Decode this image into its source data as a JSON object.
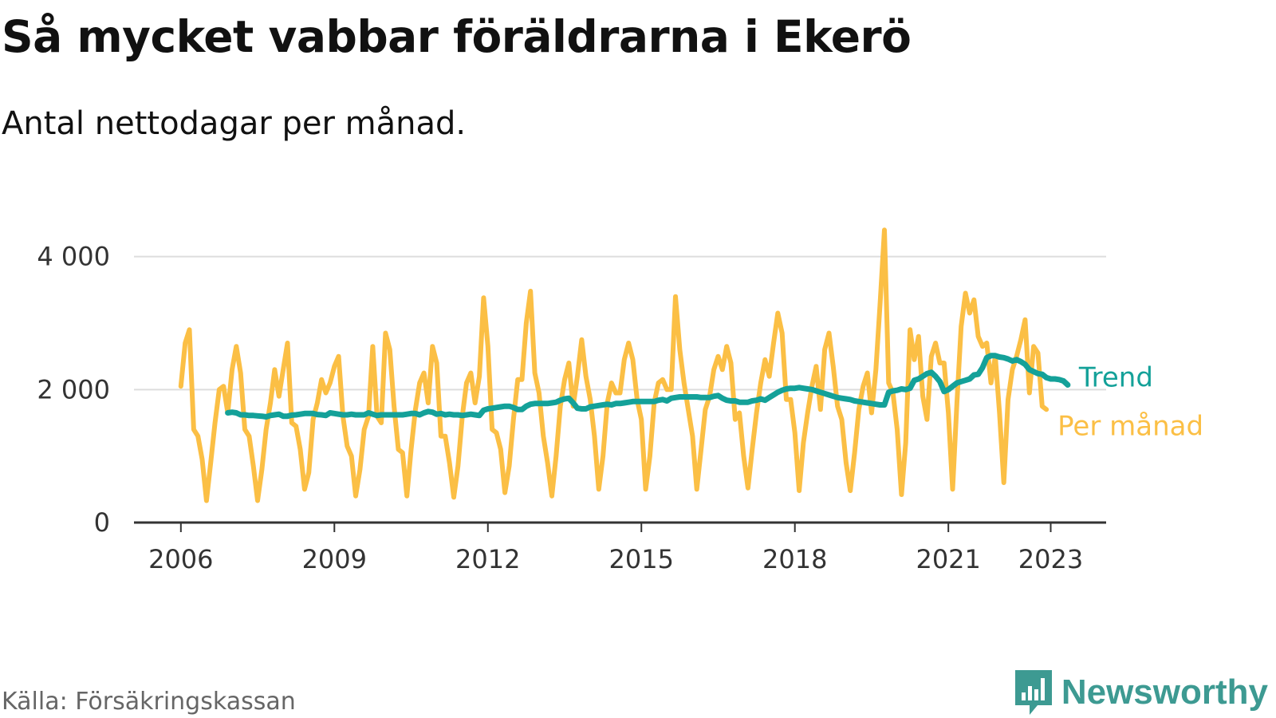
{
  "title": "Så mycket vabbar föräldrarna i Ekerö",
  "subtitle": "Antal nettodagar per månad.",
  "source": "Källa: Försäkringskassan",
  "brand": {
    "name": "Newsworthy",
    "icon": "newsworthy-logo-icon",
    "color": "#3d9a92"
  },
  "chart_data": {
    "type": "line",
    "title": "Så mycket vabbar föräldrarna i Ekerö",
    "subtitle": "Antal nettodagar per månad.",
    "xlabel": "",
    "ylabel": "",
    "ylim": [
      0,
      4500
    ],
    "xlim": [
      "2005-02",
      "2024-02"
    ],
    "y_ticks": [
      {
        "value": 0,
        "label": "0"
      },
      {
        "value": 2000,
        "label": "2 000"
      },
      {
        "value": 4000,
        "label": "4 000"
      }
    ],
    "x_ticks": [
      {
        "value": "2006-01",
        "label": "2006"
      },
      {
        "value": "2009-01",
        "label": "2009"
      },
      {
        "value": "2012-01",
        "label": "2012"
      },
      {
        "value": "2015-01",
        "label": "2015"
      },
      {
        "value": "2018-01",
        "label": "2018"
      },
      {
        "value": "2021-01",
        "label": "2021"
      },
      {
        "value": "2023-01",
        "label": "2023"
      }
    ],
    "grid": true,
    "legend": "end-of-line labels",
    "series": [
      {
        "name": "Per månad",
        "color": "#fbbf45",
        "start": "2006-01",
        "values": [
          2050,
          2700,
          2900,
          1400,
          1300,
          950,
          330,
          900,
          1500,
          2000,
          2050,
          1650,
          2300,
          2650,
          2250,
          1400,
          1300,
          850,
          330,
          800,
          1400,
          1800,
          2300,
          1900,
          2300,
          2700,
          1500,
          1450,
          1100,
          500,
          750,
          1550,
          1800,
          2150,
          1950,
          2100,
          2350,
          2500,
          1600,
          1150,
          1000,
          400,
          800,
          1400,
          1600,
          2650,
          1600,
          1500,
          2850,
          2600,
          1750,
          1100,
          1050,
          400,
          1100,
          1700,
          2100,
          2250,
          1800,
          2650,
          2400,
          1300,
          1300,
          900,
          380,
          850,
          1600,
          2100,
          2250,
          1800,
          2200,
          3380,
          2650,
          1400,
          1350,
          1100,
          450,
          850,
          1550,
          2150,
          2150,
          3000,
          3480,
          2250,
          1950,
          1300,
          900,
          400,
          1000,
          1750,
          2150,
          2400,
          1750,
          2200,
          2750,
          2200,
          1850,
          1300,
          500,
          1000,
          1800,
          2100,
          1950,
          1950,
          2450,
          2700,
          2450,
          1850,
          1550,
          500,
          1000,
          1800,
          2100,
          2150,
          2000,
          2000,
          3400,
          2600,
          2100,
          1700,
          1300,
          500,
          1100,
          1700,
          1900,
          2300,
          2500,
          2300,
          2650,
          2400,
          1550,
          1650,
          1000,
          520,
          1100,
          1650,
          2100,
          2450,
          2200,
          2700,
          3150,
          2850,
          1850,
          1850,
          1350,
          480,
          1200,
          1650,
          2050,
          2350,
          1700,
          2600,
          2850,
          2350,
          1750,
          1550,
          900,
          480,
          1050,
          1700,
          2050,
          2250,
          1650,
          2300,
          3300,
          4400,
          2100,
          1950,
          1400,
          420,
          1200,
          2900,
          2450,
          2800,
          1900,
          1550,
          2500,
          2700,
          2400,
          2400,
          1650,
          500,
          1800,
          2950,
          3450,
          3150,
          3350,
          2800,
          2650,
          2700,
          2100,
          2500,
          1650,
          600,
          1850,
          2300,
          2500,
          2750,
          3050,
          1950,
          2650,
          2550,
          1750,
          1700
        ]
      },
      {
        "name": "Trend",
        "color": "#14a199",
        "start": "2006-12",
        "values": [
          1650,
          1660,
          1650,
          1620,
          1620,
          1610,
          1610,
          1605,
          1600,
          1590,
          1610,
          1620,
          1630,
          1600,
          1600,
          1615,
          1620,
          1630,
          1640,
          1640,
          1640,
          1625,
          1620,
          1610,
          1650,
          1640,
          1630,
          1620,
          1620,
          1630,
          1620,
          1620,
          1620,
          1650,
          1630,
          1610,
          1620,
          1620,
          1620,
          1620,
          1620,
          1620,
          1630,
          1640,
          1640,
          1620,
          1650,
          1670,
          1660,
          1630,
          1640,
          1620,
          1630,
          1620,
          1620,
          1610,
          1620,
          1630,
          1620,
          1610,
          1690,
          1710,
          1720,
          1730,
          1740,
          1750,
          1750,
          1730,
          1700,
          1700,
          1750,
          1780,
          1790,
          1790,
          1790,
          1790,
          1800,
          1810,
          1840,
          1860,
          1870,
          1800,
          1720,
          1710,
          1710,
          1740,
          1750,
          1760,
          1770,
          1780,
          1770,
          1790,
          1790,
          1800,
          1810,
          1820,
          1820,
          1820,
          1820,
          1820,
          1820,
          1840,
          1850,
          1830,
          1870,
          1880,
          1890,
          1890,
          1890,
          1890,
          1890,
          1880,
          1880,
          1880,
          1900,
          1910,
          1870,
          1840,
          1830,
          1830,
          1810,
          1810,
          1810,
          1830,
          1840,
          1860,
          1840,
          1880,
          1920,
          1960,
          1990,
          2010,
          2020,
          2020,
          2030,
          2020,
          2010,
          2000,
          1980,
          1960,
          1940,
          1920,
          1900,
          1880,
          1870,
          1860,
          1850,
          1830,
          1820,
          1810,
          1800,
          1790,
          1780,
          1770,
          1770,
          1960,
          1980,
          1990,
          2010,
          2000,
          2020,
          2140,
          2160,
          2200,
          2240,
          2260,
          2200,
          2120,
          1970,
          2000,
          2050,
          2100,
          2120,
          2140,
          2160,
          2220,
          2230,
          2330,
          2480,
          2510,
          2510,
          2490,
          2480,
          2460,
          2430,
          2450,
          2420,
          2380,
          2300,
          2270,
          2240,
          2230,
          2180,
          2160,
          2160,
          2150,
          2130,
          2070
        ]
      }
    ]
  }
}
